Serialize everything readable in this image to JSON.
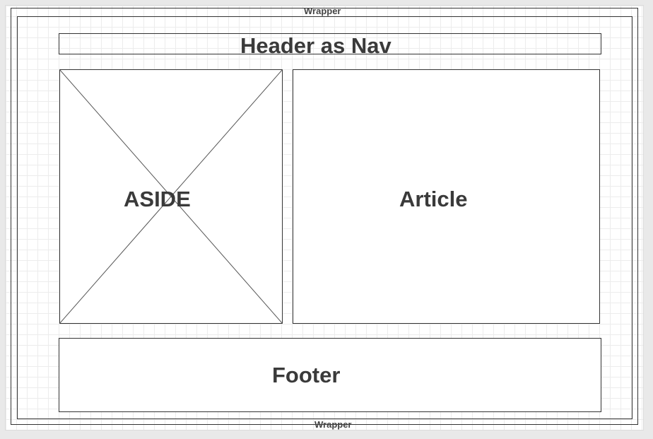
{
  "wrapper": {
    "top_label": "Wrapper",
    "bottom_label": "Wrapper"
  },
  "header": {
    "label": "Header as Nav"
  },
  "aside": {
    "label": "ASIDE",
    "image_placeholder_icon": "image-placeholder-cross"
  },
  "article": {
    "label": "Article"
  },
  "footer": {
    "label": "Footer"
  },
  "colors": {
    "canvas_background": "#ffffff",
    "page_background": "#e9e9e9",
    "grid_line": "#ececec",
    "border": "#333333",
    "label_text": "#3a3a3a"
  }
}
